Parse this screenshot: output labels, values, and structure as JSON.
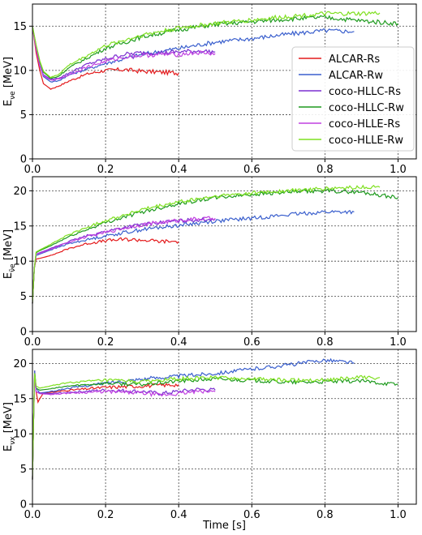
{
  "chart_data": [
    {
      "type": "line",
      "ylabel": "E",
      "ylabel_sub": "νe",
      "ylabel_unit": " [MeV]",
      "xlabel": "",
      "xlim": [
        0,
        1.05
      ],
      "ylim": [
        0,
        17.5
      ],
      "xticks": [
        0.0,
        0.2,
        0.4,
        0.6,
        0.8,
        1.0
      ],
      "yticks": [
        0,
        5,
        10,
        15
      ],
      "grid": true,
      "legend": "right",
      "series": [
        {
          "name": "ALCAR-Rs",
          "color": "#e41a1c",
          "x": [
            0,
            0.01,
            0.02,
            0.03,
            0.05,
            0.07,
            0.1,
            0.15,
            0.2,
            0.25,
            0.3,
            0.35,
            0.4
          ],
          "y": [
            15,
            12,
            10,
            8.5,
            7.9,
            8.2,
            8.8,
            9.6,
            10.0,
            10.1,
            9.9,
            9.8,
            9.7
          ]
        },
        {
          "name": "ALCAR-Rw",
          "color": "#3a5fcd",
          "x": [
            0,
            0.01,
            0.02,
            0.03,
            0.05,
            0.07,
            0.1,
            0.2,
            0.3,
            0.4,
            0.5,
            0.6,
            0.7,
            0.8,
            0.88
          ],
          "y": [
            15,
            12.5,
            10.5,
            9.3,
            8.7,
            8.8,
            9.5,
            10.8,
            11.8,
            12.5,
            13.2,
            13.6,
            14.1,
            14.5,
            14.4
          ]
        },
        {
          "name": "coco-HLLC-Rs",
          "color": "#7b2fd0",
          "x": [
            0,
            0.01,
            0.02,
            0.03,
            0.05,
            0.07,
            0.1,
            0.15,
            0.2,
            0.25,
            0.3,
            0.35,
            0.4,
            0.45,
            0.5
          ],
          "y": [
            15,
            12.5,
            10.6,
            9.5,
            9.0,
            9.1,
            9.7,
            10.7,
            11.3,
            11.8,
            12.0,
            12.0,
            12.1,
            12.2,
            12.1
          ]
        },
        {
          "name": "coco-HLLC-Rw",
          "color": "#1e9a1e",
          "x": [
            0,
            0.01,
            0.02,
            0.03,
            0.05,
            0.07,
            0.1,
            0.2,
            0.3,
            0.4,
            0.5,
            0.6,
            0.7,
            0.8,
            0.9,
            1.0
          ],
          "y": [
            15,
            12.8,
            11,
            9.8,
            9.1,
            9.3,
            10.3,
            12.5,
            13.8,
            14.6,
            15.2,
            15.5,
            15.8,
            16.0,
            15.6,
            15.3
          ]
        },
        {
          "name": "coco-HLLE-Rs",
          "color": "#c040e0",
          "x": [
            0,
            0.01,
            0.02,
            0.03,
            0.05,
            0.07,
            0.1,
            0.15,
            0.2,
            0.25,
            0.3,
            0.35,
            0.4,
            0.45,
            0.5
          ],
          "y": [
            15,
            12.4,
            10.5,
            9.4,
            8.9,
            9.0,
            9.5,
            10.4,
            11.0,
            11.5,
            11.7,
            11.8,
            11.8,
            12.0,
            11.9
          ]
        },
        {
          "name": "coco-HLLE-Rw",
          "color": "#7fe020",
          "x": [
            0,
            0.01,
            0.02,
            0.03,
            0.05,
            0.07,
            0.1,
            0.2,
            0.3,
            0.4,
            0.5,
            0.6,
            0.7,
            0.8,
            0.9,
            0.95
          ],
          "y": [
            15,
            12.9,
            11.1,
            9.9,
            9.2,
            9.5,
            10.6,
            12.8,
            14.0,
            14.8,
            15.3,
            15.7,
            16.1,
            16.4,
            16.4,
            16.5
          ]
        }
      ]
    },
    {
      "type": "line",
      "ylabel": "E",
      "ylabel_sub": "ν̄e",
      "ylabel_unit": " [MeV]",
      "xlabel": "",
      "xlim": [
        0,
        1.05
      ],
      "ylim": [
        0,
        22
      ],
      "xticks": [
        0.0,
        0.2,
        0.4,
        0.6,
        0.8,
        1.0
      ],
      "yticks": [
        0,
        5,
        10,
        15,
        20
      ],
      "grid": true,
      "series": [
        {
          "name": "ALCAR-Rs",
          "color": "#e41a1c",
          "x": [
            0,
            0.005,
            0.01,
            0.02,
            0.05,
            0.1,
            0.15,
            0.2,
            0.25,
            0.3,
            0.35,
            0.4
          ],
          "y": [
            4,
            9,
            10.3,
            10.4,
            10.8,
            11.8,
            12.5,
            12.9,
            13.1,
            13.0,
            12.8,
            12.8
          ]
        },
        {
          "name": "ALCAR-Rw",
          "color": "#3a5fcd",
          "x": [
            0,
            0.005,
            0.01,
            0.02,
            0.05,
            0.1,
            0.2,
            0.3,
            0.4,
            0.5,
            0.6,
            0.7,
            0.8,
            0.88
          ],
          "y": [
            4,
            9,
            10.8,
            11.0,
            11.6,
            12.5,
            13.6,
            14.5,
            15.1,
            15.7,
            16.1,
            16.6,
            17.0,
            17.0
          ]
        },
        {
          "name": "coco-HLLC-Rs",
          "color": "#7b2fd0",
          "x": [
            0,
            0.005,
            0.01,
            0.02,
            0.05,
            0.1,
            0.15,
            0.2,
            0.25,
            0.3,
            0.35,
            0.4,
            0.45,
            0.5
          ],
          "y": [
            4,
            9,
            11,
            11.2,
            11.8,
            12.8,
            13.6,
            14.2,
            14.8,
            15.2,
            15.5,
            15.7,
            15.9,
            16.0
          ]
        },
        {
          "name": "coco-HLLC-Rw",
          "color": "#1e9a1e",
          "x": [
            0,
            0.005,
            0.01,
            0.02,
            0.05,
            0.1,
            0.2,
            0.3,
            0.4,
            0.5,
            0.6,
            0.7,
            0.8,
            0.9,
            1.0
          ],
          "y": [
            4,
            9,
            11.2,
            11.5,
            12.2,
            13.5,
            15.5,
            17.0,
            18.2,
            19.0,
            19.5,
            19.8,
            20.0,
            19.8,
            19.0
          ]
        },
        {
          "name": "coco-HLLE-Rs",
          "color": "#c040e0",
          "x": [
            0,
            0.005,
            0.01,
            0.02,
            0.05,
            0.1,
            0.15,
            0.2,
            0.25,
            0.3,
            0.35,
            0.4,
            0.45,
            0.5
          ],
          "y": [
            4,
            9,
            11,
            11.1,
            11.7,
            12.7,
            13.5,
            14.1,
            14.7,
            15.2,
            15.5,
            15.8,
            16.0,
            16.1
          ]
        },
        {
          "name": "coco-HLLE-Rw",
          "color": "#7fe020",
          "x": [
            0,
            0.005,
            0.01,
            0.02,
            0.05,
            0.1,
            0.2,
            0.3,
            0.4,
            0.5,
            0.6,
            0.7,
            0.8,
            0.9,
            0.95
          ],
          "y": [
            4,
            9,
            11.3,
            11.6,
            12.4,
            13.8,
            15.8,
            17.3,
            18.4,
            19.2,
            19.7,
            20.0,
            20.3,
            20.5,
            20.5
          ]
        }
      ]
    },
    {
      "type": "line",
      "ylabel": "E",
      "ylabel_sub": "νx",
      "ylabel_unit": " [MeV]",
      "xlabel": "Time [s]",
      "xlim": [
        0,
        1.05
      ],
      "ylim": [
        0,
        22
      ],
      "xticks": [
        0.0,
        0.2,
        0.4,
        0.6,
        0.8,
        1.0
      ],
      "yticks": [
        0,
        5,
        10,
        15,
        20
      ],
      "grid": true,
      "series": [
        {
          "name": "ALCAR-Rs",
          "color": "#e41a1c",
          "x": [
            0,
            0.003,
            0.006,
            0.01,
            0.015,
            0.02,
            0.03,
            0.05,
            0.1,
            0.2,
            0.3,
            0.35,
            0.4
          ],
          "y": [
            3.5,
            12,
            19,
            16,
            14.5,
            15,
            15.8,
            15.9,
            16.2,
            16.6,
            16.8,
            16.9,
            17.0
          ]
        },
        {
          "name": "ALCAR-Rw",
          "color": "#3a5fcd",
          "x": [
            0,
            0.003,
            0.006,
            0.01,
            0.02,
            0.05,
            0.1,
            0.2,
            0.3,
            0.4,
            0.5,
            0.6,
            0.7,
            0.8,
            0.88
          ],
          "y": [
            3.5,
            12,
            19,
            16.5,
            15.8,
            16.0,
            16.5,
            17.2,
            17.8,
            18.2,
            18.6,
            19.2,
            19.8,
            20.5,
            20.1
          ]
        },
        {
          "name": "coco-HLLC-Rs",
          "color": "#7b2fd0",
          "x": [
            0,
            0.003,
            0.006,
            0.01,
            0.02,
            0.05,
            0.1,
            0.2,
            0.3,
            0.35,
            0.4,
            0.45,
            0.5
          ],
          "y": [
            3.5,
            12,
            18,
            16,
            15.8,
            15.7,
            15.9,
            16.2,
            16.0,
            15.7,
            16.0,
            16.3,
            16.2
          ]
        },
        {
          "name": "coco-HLLC-Rw",
          "color": "#1e9a1e",
          "x": [
            0,
            0.003,
            0.006,
            0.01,
            0.02,
            0.05,
            0.1,
            0.2,
            0.3,
            0.4,
            0.5,
            0.6,
            0.7,
            0.8,
            0.9,
            1.0
          ],
          "y": [
            3.5,
            12,
            18.5,
            16.5,
            16.2,
            16.4,
            16.8,
            17.2,
            17.0,
            17.5,
            17.8,
            17.6,
            17.3,
            17.4,
            17.5,
            17.0
          ]
        },
        {
          "name": "coco-HLLE-Rs",
          "color": "#c040e0",
          "x": [
            0,
            0.003,
            0.006,
            0.01,
            0.02,
            0.05,
            0.1,
            0.2,
            0.3,
            0.35,
            0.4,
            0.45,
            0.5
          ],
          "y": [
            3.5,
            12,
            18,
            16,
            15.7,
            15.6,
            15.8,
            16.0,
            15.8,
            15.5,
            15.7,
            16.0,
            16.0
          ]
        },
        {
          "name": "coco-HLLE-Rw",
          "color": "#7fe020",
          "x": [
            0,
            0.003,
            0.006,
            0.01,
            0.02,
            0.05,
            0.1,
            0.2,
            0.3,
            0.4,
            0.5,
            0.6,
            0.7,
            0.8,
            0.9,
            0.95
          ],
          "y": [
            3.5,
            12,
            18.6,
            16.8,
            16.5,
            16.8,
            17.3,
            17.6,
            17.4,
            17.8,
            18.0,
            17.8,
            17.6,
            17.7,
            18.0,
            18.0
          ]
        }
      ]
    }
  ]
}
